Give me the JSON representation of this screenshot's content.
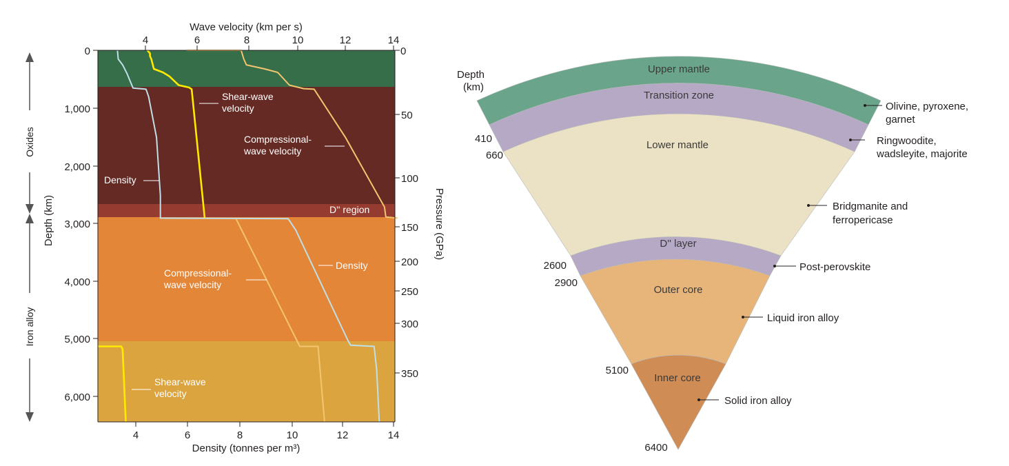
{
  "left_chart": {
    "top_axis_title": "Wave velocity (km per s)",
    "top_ticks": [
      "4",
      "6",
      "8",
      "10",
      "12",
      "14"
    ],
    "bottom_axis_title": "Density (tonnes per m³)",
    "bottom_ticks": [
      "4",
      "6",
      "8",
      "10",
      "12",
      "14"
    ],
    "left_axis_title": "Depth (km)",
    "left_ticks": [
      "0",
      "1,000",
      "2,000",
      "3,000",
      "4,000",
      "5,000",
      "6,000"
    ],
    "right_axis_title": "Pressure (GPa)",
    "right_ticks": [
      "0",
      "50",
      "100",
      "150",
      "200",
      "250",
      "300",
      "350"
    ],
    "side_labels": {
      "oxides": "Oxides",
      "iron_alloy": "Iron alloy"
    },
    "labels": {
      "shear_upper": [
        "Shear-wave",
        "velocity"
      ],
      "comp_upper": [
        "Compressional-",
        "wave velocity"
      ],
      "density_upper": "Density",
      "d_region": "D'' region",
      "comp_lower": [
        "Compressional-",
        "wave velocity"
      ],
      "density_lower": "Density",
      "shear_lower": [
        "Shear-wave",
        "velocity"
      ]
    },
    "colors": {
      "upper_mantle": "#356e49",
      "lower_mantle": "#652a24",
      "d_region": "#953b30",
      "outer_core": "#e48637",
      "inner_core": "#dca43f",
      "density_line": "#bfe0e8",
      "shear_line": "#ffea00",
      "comp_line": "#f4c56f"
    }
  },
  "chart_data": {
    "type": "line",
    "xlabel": "Density (tonnes per m³)",
    "x2label": "Wave velocity (km per s)",
    "ylabel": "Depth (km)",
    "y2label": "Pressure (GPa)",
    "xlim": [
      2.6,
      14
    ],
    "x2lim": [
      2.6,
      14
    ],
    "ylim": [
      6400,
      0
    ],
    "y2ticks": [
      0,
      50,
      100,
      150,
      200,
      250,
      300,
      350
    ],
    "regions": [
      {
        "name": "Upper mantle",
        "depth": [
          0,
          660
        ]
      },
      {
        "name": "Lower mantle",
        "depth": [
          660,
          2700
        ]
      },
      {
        "name": "D'' region",
        "depth": [
          2700,
          2900
        ]
      },
      {
        "name": "Outer core",
        "depth": [
          2900,
          5100
        ]
      },
      {
        "name": "Inner core",
        "depth": [
          5100,
          6400
        ]
      }
    ],
    "series": [
      {
        "name": "Density",
        "points": [
          [
            3.35,
            0
          ],
          [
            3.38,
            150
          ],
          [
            3.55,
            250
          ],
          [
            3.72,
            400
          ],
          [
            3.95,
            650
          ],
          [
            4.45,
            670
          ],
          [
            4.55,
            800
          ],
          [
            4.85,
            1500
          ],
          [
            5.0,
            2500
          ],
          [
            5.0,
            2890
          ],
          [
            9.9,
            2900
          ],
          [
            10.2,
            3100
          ],
          [
            12.2,
            5000
          ],
          [
            12.3,
            5080
          ],
          [
            13.2,
            5100
          ],
          [
            13.3,
            5500
          ],
          [
            13.4,
            6400
          ]
        ]
      },
      {
        "name": "Shear-wave velocity",
        "points": [
          [
            4.5,
            0
          ],
          [
            4.6,
            50
          ],
          [
            4.6,
            100
          ],
          [
            4.65,
            150
          ],
          [
            4.75,
            320
          ],
          [
            5.1,
            380
          ],
          [
            5.35,
            450
          ],
          [
            5.7,
            600
          ],
          [
            6.1,
            640
          ],
          [
            6.2,
            670
          ],
          [
            6.7,
            2890
          ]
        ]
      },
      {
        "name": "Compressional-wave velocity",
        "points": [
          [
            6.0,
            0
          ],
          [
            8.1,
            0
          ],
          [
            8.2,
            150
          ],
          [
            8.3,
            250
          ],
          [
            9.0,
            320
          ],
          [
            9.5,
            380
          ],
          [
            9.95,
            600
          ],
          [
            10.5,
            660
          ],
          [
            10.9,
            670
          ],
          [
            12.1,
            1500
          ],
          [
            13.6,
            2700
          ],
          [
            13.65,
            2870
          ],
          [
            14.1,
            2890
          ]
        ]
      },
      {
        "name": "Compressional-wave velocity",
        "points": [
          [
            7.9,
            2900
          ],
          [
            10.35,
            5100
          ],
          [
            11.05,
            5100
          ],
          [
            11.3,
            6400
          ]
        ]
      },
      {
        "name": "Shear-wave velocity",
        "points": [
          [
            2.6,
            5100
          ],
          [
            3.5,
            5100
          ],
          [
            3.55,
            5150
          ],
          [
            3.67,
            6400
          ]
        ]
      }
    ]
  },
  "right_diagram": {
    "depth_title": [
      "Depth",
      "(km)"
    ],
    "depth_marks": [
      "410",
      "660",
      "2600",
      "2900",
      "5100",
      "6400"
    ],
    "layers": {
      "upper_mantle": "Upper mantle",
      "transition_zone": "Transition zone",
      "lower_mantle": "Lower mantle",
      "d_layer": "D'' layer",
      "outer_core": "Outer core",
      "inner_core": "Inner core"
    },
    "minerals": {
      "upper": [
        "Olivine, pyroxene,",
        "garnet"
      ],
      "transition": [
        "Ringwoodite,",
        "wadsleyite, majorite"
      ],
      "lower": [
        "Bridgmanite and",
        "ferropericase"
      ],
      "d_layer": "Post-perovskite",
      "outer_core": "Liquid iron alloy",
      "inner_core": "Solid iron alloy"
    },
    "colors": {
      "upper_mantle": "#6aa58b",
      "transition_zone": "#b5a9c6",
      "lower_mantle": "#ebe2c5",
      "d_layer": "#b5a9c6",
      "outer_core": "#e7b57a",
      "inner_core": "#cf8c55"
    }
  }
}
